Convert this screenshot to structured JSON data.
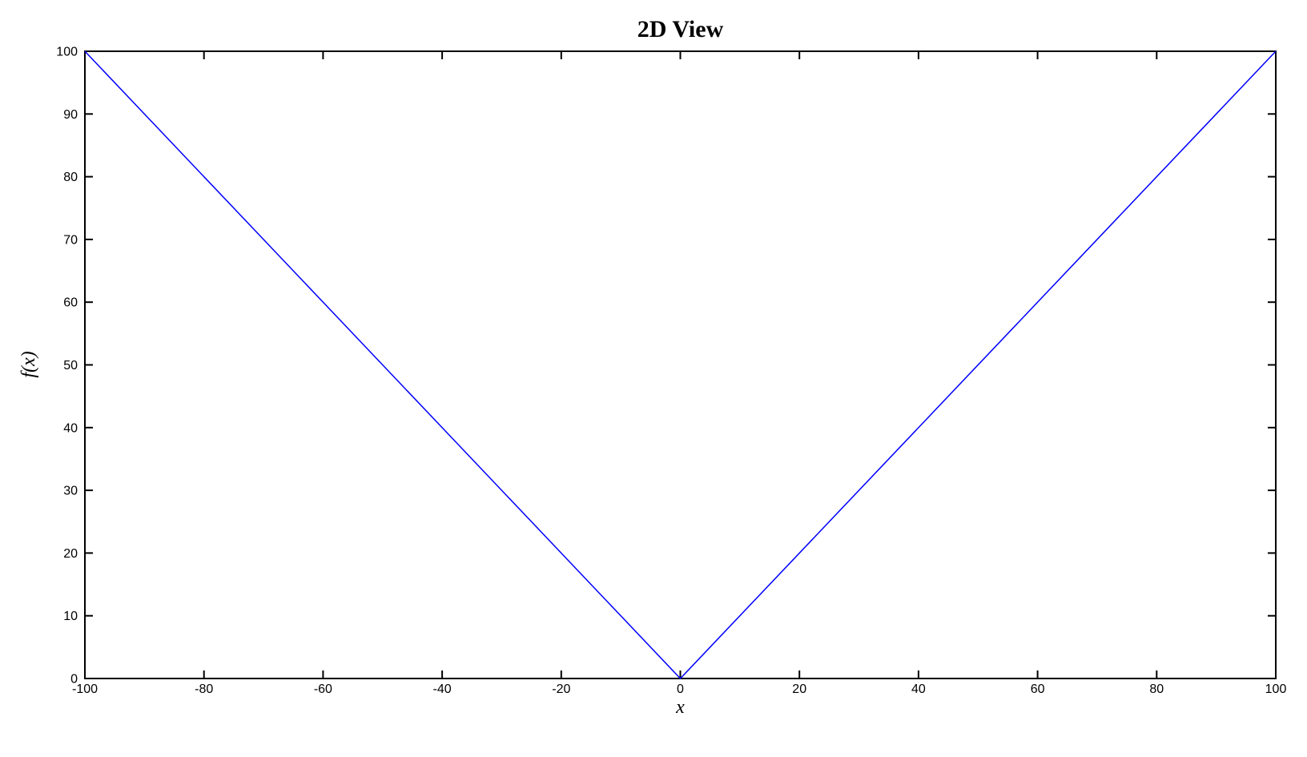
{
  "chart_data": {
    "type": "line",
    "title": "2D View",
    "xlabel": "x",
    "ylabel": "f(x)",
    "xlim": [
      -100,
      100
    ],
    "ylim": [
      0,
      100
    ],
    "xticks": [
      -100,
      -80,
      -60,
      -40,
      -20,
      0,
      20,
      40,
      60,
      80,
      100
    ],
    "yticks": [
      0,
      10,
      20,
      30,
      40,
      50,
      60,
      70,
      80,
      90,
      100
    ],
    "grid": false,
    "legend_position": "none",
    "box": true,
    "background_color": "#ffffff",
    "axis_color": "#000000",
    "series": [
      {
        "color": "#0000ff",
        "x": [
          -100,
          0,
          100
        ],
        "y": [
          100,
          0,
          100
        ]
      }
    ]
  }
}
